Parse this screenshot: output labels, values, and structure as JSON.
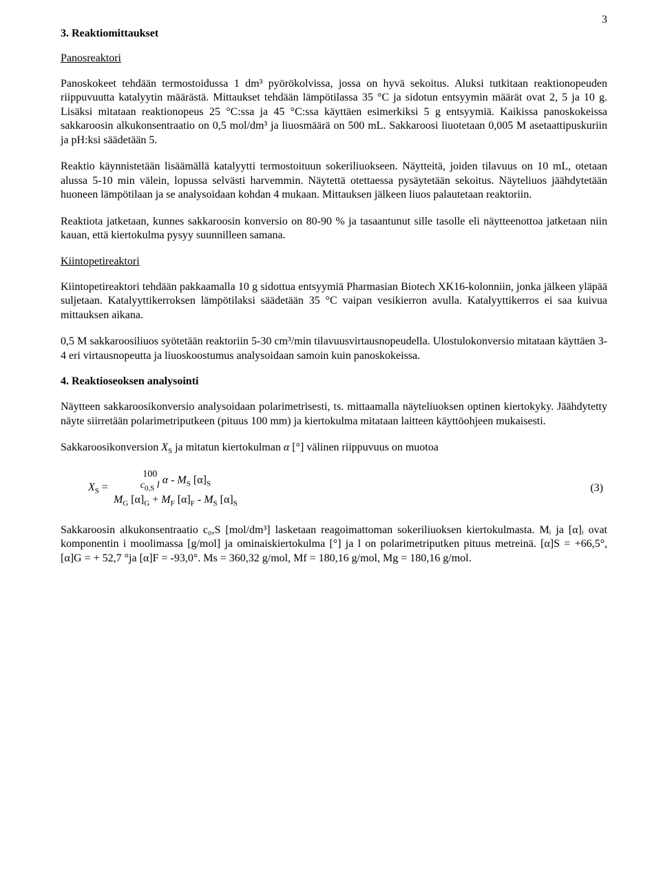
{
  "pageNumber": "3",
  "section3": {
    "title": "3. Reaktiomittaukset",
    "panosreaktori": {
      "heading": "Panosreaktori",
      "p1": "Panoskokeet tehdään termostoidussa 1 dm³ pyörökolvissa, jossa on hyvä sekoitus. Aluksi tutkitaan reaktionopeuden riippuvuutta katalyytin määrästä. Mittaukset tehdään lämpötilassa 35 °C ja sidotun entsyymin määrät ovat 2, 5 ja 10 g. Lisäksi mitataan reaktionopeus 25 °C:ssa ja 45 °C:ssa käyttäen esimerkiksi 5 g entsyymiä. Kaikissa panoskokeissa sakkaroosin alkukonsentraatio on 0,5 mol/dm³ ja liuosmäärä on 500 mL. Sakkaroosi liuotetaan 0,005 M asetaattipuskuriin ja pH:ksi säädetään 5.",
      "p2": "Reaktio käynnistetään lisäämällä katalyytti termostoituun sokeriliuokseen. Näytteitä, joiden tilavuus on 10 mL, otetaan alussa 5-10 min välein, lopussa selvästi harvemmin. Näytettä otettaessa pysäytetään sekoitus. Näyteliuos jäähdytetään huoneen lämpötilaan ja se analysoidaan kohdan 4 mukaan. Mittauksen jälkeen liuos palautetaan reaktoriin.",
      "p3": "Reaktiota jatketaan, kunnes sakkaroosin konversio on 80-90 % ja tasaantunut sille tasolle eli näytteenottoa jatketaan niin kauan, että kiertokulma pysyy suunnilleen samana."
    },
    "kiintopetireaktori": {
      "heading": "Kiintopetireaktori",
      "p1": "Kiintopetireaktori tehdään pakkaamalla 10 g sidottua entsyymiä Pharmasian Biotech XK16-kolonniin, jonka jälkeen yläpää suljetaan. Katalyyttikerroksen lämpötilaksi säädetään 35 °C vaipan vesikierron avulla. Katalyyttikerros ei saa kuivua mittauksen aikana.",
      "p2": "0,5 M sakkaroosiliuos syötetään reaktoriin 5-30 cm³/min tilavuusvirtausnopeudella. Ulostulokonversio mitataan käyttäen 3-4 eri virtausnopeutta ja liuoskoostumus analysoidaan samoin kuin panoskokeissa."
    }
  },
  "section4": {
    "title": "4. Reaktioseoksen analysointi",
    "p1": "Näytteen sakkaroosikonversio analysoidaan polarimetrisesti, ts. mittaamalla näyteliuoksen optinen kiertokyky. Jäähdytetty näyte siirretään polarimetriputkeen (pituus 100 mm) ja kiertokulma mitataan laitteen käyttöohjeen mukaisesti.",
    "p2_prefix": "Sakkaroosikonversion ",
    "p2_mid": " ja mitatun kiertokulman ",
    "p2_suffix": " [°] välinen riippuvuus on muotoa",
    "xs_var": "X",
    "xs_sub": "S",
    "alpha_var": "α",
    "eq": {
      "lhs_X": "X",
      "lhs_sub": "S",
      "eq_sign": " = ",
      "inner_top": "100",
      "inner_bot_c": "c",
      "inner_bot_sub": "0,S",
      "inner_bot_l": "l",
      "top_rest": "α - M",
      "top_S": "S",
      "top_bracket": "[α]",
      "bot_MG": "M",
      "bot_G": "G",
      "bot_bracket": "[α]",
      "bot_plus": " + ",
      "bot_MF": "M",
      "bot_F": "F",
      "bot_minus": " - ",
      "bot_MS": "M",
      "bot_Ssub": "S",
      "number": "(3)"
    },
    "p3": "Sakkaroosin alkukonsentraatio c₀,S [mol/dm³] lasketaan reagoimattoman sokeriliuoksen kiertokulmasta. Mᵢ ja [α]ᵢ ovat komponentin i moolimassa [g/mol] ja ominaiskiertokulma [°] ja l on polarimetriputken pituus metreinä. [α]S = +66,5°, [α]G = + 52,7 °ja [α]F = -93,0°. Ms = 360,32 g/mol, Mf = 180,16 g/mol, Mg = 180,16 g/mol."
  }
}
